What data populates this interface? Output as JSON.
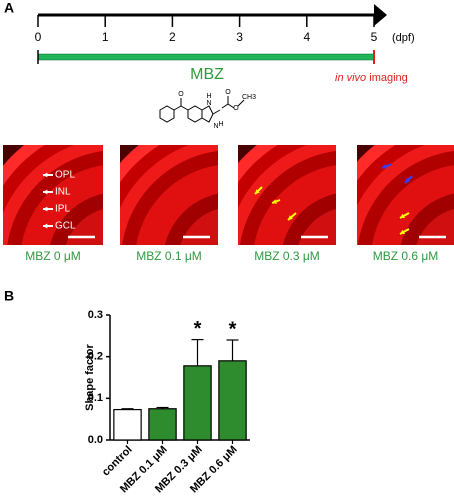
{
  "panel_a": {
    "letter": "A",
    "timeline": {
      "ticks": [
        0,
        1,
        2,
        3,
        4,
        5
      ],
      "unit": "(dpf)"
    },
    "treatment": "MBZ",
    "imaging_label": {
      "italic": "in vivo",
      "text": "imaging"
    },
    "structure_atoms": [
      "H",
      "N",
      "N",
      "H",
      "O",
      "O",
      "O",
      "CH3"
    ],
    "layers": [
      "OPL",
      "INL",
      "IPL",
      "GCL"
    ],
    "captions": [
      "MBZ 0 μM",
      "MBZ 0.1 μM",
      "MBZ 0.3 μM",
      "MBZ 0.6 μM"
    ]
  },
  "chart_data": {
    "type": "bar",
    "letter": "B",
    "ylabel": "Shape factor",
    "categories": [
      "control",
      "MBZ 0.1 μM",
      "MBZ 0.3 μM",
      "MBZ 0.6 μM"
    ],
    "values": [
      0.073,
      0.075,
      0.178,
      0.19
    ],
    "errors": [
      0.002,
      0.003,
      0.063,
      0.05
    ],
    "colors": [
      "#ffffff",
      "#2e8b2e",
      "#2e8b2e",
      "#2e8b2e"
    ],
    "significance": [
      null,
      null,
      "*",
      "*"
    ],
    "ylim": [
      0,
      0.3
    ],
    "yticks": [
      {
        "value": 0,
        "label": "0.0"
      },
      0.1,
      0.2,
      0.3
    ]
  }
}
